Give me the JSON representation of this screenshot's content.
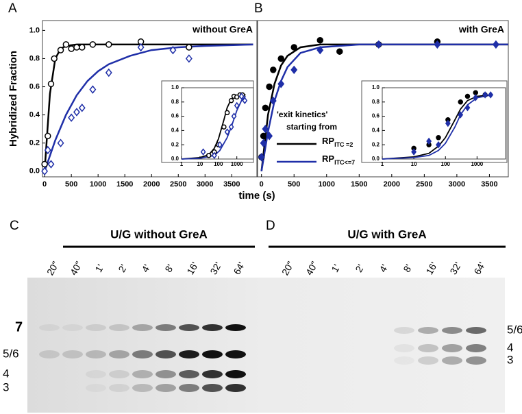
{
  "chart_data": [
    {
      "type": "scatter",
      "panel": "A",
      "title": "without GreA",
      "ylabel": "Hybridized Fraction",
      "xlabel": "time (s)",
      "xlim": [
        -40,
        3970
      ],
      "ylim": [
        -0.04,
        1.07
      ],
      "xticks": [
        0,
        500,
        1000,
        1500,
        2000,
        2500,
        3000,
        3500
      ],
      "yticks": [
        {
          "value": 0,
          "label": "0.0"
        },
        0.2,
        0.4,
        0.6,
        0.8,
        {
          "value": 1,
          "label": "1.0"
        }
      ],
      "series": [
        {
          "kind": "fit",
          "color": "#000000",
          "x": [
            0,
            100,
            200,
            300,
            400,
            600,
            1000,
            2000,
            3900
          ],
          "values": [
            0,
            0.55,
            0.8,
            0.87,
            0.89,
            0.9,
            0.9,
            0.9,
            0.9
          ]
        },
        {
          "kind": "fit",
          "color": "#1f2fa8",
          "x": [
            0,
            200,
            400,
            600,
            800,
            1000,
            1200,
            1600,
            2000,
            2500,
            3000,
            3900
          ],
          "values": [
            0,
            0.22,
            0.4,
            0.54,
            0.64,
            0.71,
            0.76,
            0.82,
            0.86,
            0.88,
            0.89,
            0.9
          ]
        },
        {
          "kind": "points",
          "marker": "circle",
          "filled": false,
          "color": "#000000",
          "x": [
            0,
            60,
            120,
            180,
            300,
            400,
            500,
            600,
            700,
            900,
            1200,
            1800,
            2700
          ],
          "values": [
            0.05,
            0.25,
            0.62,
            0.8,
            0.86,
            0.9,
            0.87,
            0.88,
            0.88,
            0.9,
            0.9,
            0.92,
            0.88
          ]
        },
        {
          "kind": "points",
          "marker": "diamond",
          "filled": false,
          "color": "#1f2fa8",
          "x": [
            0,
            60,
            120,
            300,
            500,
            600,
            700,
            900,
            1200,
            1800,
            2400,
            2700
          ],
          "values": [
            0,
            0.15,
            0.05,
            0.2,
            0.38,
            0.42,
            0.45,
            0.58,
            0.7,
            0.88,
            0.86,
            0.8
          ]
        }
      ]
    },
    {
      "type": "scatter",
      "xscale": "log",
      "xlim": [
        1,
        8000
      ],
      "ylim": [
        0,
        1
      ],
      "xticks": [
        1,
        10,
        100,
        1000
      ],
      "yticks": [
        {
          "value": 0,
          "label": "0.0"
        },
        0.2,
        0.4,
        0.6,
        0.8,
        {
          "value": 1,
          "label": "1.0"
        }
      ],
      "series": [
        {
          "kind": "fit",
          "color": "#000000",
          "x": [
            1,
            10,
            30,
            60,
            100,
            200,
            300,
            500,
            1000,
            3000
          ],
          "values": [
            0,
            0.02,
            0.06,
            0.15,
            0.28,
            0.55,
            0.72,
            0.84,
            0.89,
            0.9
          ]
        },
        {
          "kind": "fit",
          "color": "#1f2fa8",
          "x": [
            1,
            10,
            60,
            120,
            300,
            500,
            700,
            1000,
            1800,
            3000
          ],
          "values": [
            0,
            0.01,
            0.05,
            0.12,
            0.3,
            0.45,
            0.56,
            0.68,
            0.82,
            0.88
          ]
        },
        {
          "kind": "points",
          "marker": "circle",
          "filled": false,
          "color": "#000000",
          "x": [
            30,
            60,
            100,
            200,
            300,
            500,
            700,
            1000,
            1500,
            2000
          ],
          "values": [
            0.05,
            0.1,
            0.2,
            0.45,
            0.65,
            0.82,
            0.88,
            0.87,
            0.9,
            0.9
          ]
        },
        {
          "kind": "points",
          "marker": "diamond",
          "filled": false,
          "color": "#1f2fa8",
          "x": [
            15,
            60,
            120,
            300,
            500,
            700,
            1000,
            1800,
            2700
          ],
          "values": [
            0.1,
            0.05,
            0.2,
            0.38,
            0.45,
            0.6,
            0.75,
            0.88,
            0.82
          ]
        }
      ]
    },
    {
      "type": "scatter",
      "panel": "B",
      "title": "with GreA",
      "xlim": [
        -60,
        3790
      ],
      "ylim": [
        -0.04,
        1.07
      ],
      "xticks": [
        0,
        500,
        1000,
        1500,
        2000,
        2500,
        3000,
        3500
      ],
      "legend": {
        "title": [
          "'exit kinetics'",
          "starting from"
        ],
        "entries": [
          {
            "color": "#000000",
            "main": "RP",
            "sub": "ITC =2"
          },
          {
            "color": "#1f2fa8",
            "main": "RP",
            "sub": "ITC<=7"
          }
        ]
      },
      "series": [
        {
          "kind": "fit",
          "color": "#000000",
          "x": [
            0,
            100,
            200,
            300,
            400,
            600,
            900,
            1500,
            3790
          ],
          "values": [
            0,
            0.4,
            0.62,
            0.75,
            0.82,
            0.88,
            0.9,
            0.9,
            0.9
          ]
        },
        {
          "kind": "fit",
          "color": "#1f2fa8",
          "x": [
            0,
            100,
            200,
            300,
            400,
            600,
            900,
            1500,
            3790
          ],
          "values": [
            0,
            0.28,
            0.5,
            0.64,
            0.74,
            0.84,
            0.88,
            0.9,
            0.9
          ]
        },
        {
          "kind": "points",
          "marker": "circle",
          "filled": true,
          "color": "#000000",
          "x": [
            0,
            30,
            60,
            120,
            180,
            300,
            500,
            900,
            1200,
            1800,
            2700
          ],
          "values": [
            0.1,
            0.25,
            0.45,
            0.6,
            0.72,
            0.8,
            0.88,
            0.93,
            0.85,
            0.9,
            0.92
          ]
        },
        {
          "kind": "points",
          "marker": "diamond",
          "filled": true,
          "color": "#1f2fa8",
          "x": [
            0,
            30,
            60,
            120,
            180,
            300,
            500,
            900,
            1800,
            2700,
            3600
          ],
          "values": [
            0.1,
            0.2,
            0.3,
            0.25,
            0.5,
            0.62,
            0.72,
            0.86,
            0.9,
            0.9,
            0.9
          ]
        }
      ]
    },
    {
      "type": "scatter",
      "xscale": "log",
      "xlim": [
        1,
        8000
      ],
      "ylim": [
        0,
        1
      ],
      "xticks": [
        1,
        10,
        100,
        1000
      ],
      "yticks": [
        {
          "value": 0,
          "label": "0.0"
        },
        0.2,
        0.4,
        0.6,
        0.8,
        {
          "value": 1,
          "label": "1.0"
        }
      ],
      "series": [
        {
          "kind": "fit",
          "color": "#000000",
          "x": [
            1,
            10,
            30,
            60,
            100,
            200,
            300,
            500,
            1000,
            3000
          ],
          "values": [
            0,
            0.03,
            0.08,
            0.18,
            0.3,
            0.55,
            0.7,
            0.82,
            0.88,
            0.9
          ]
        },
        {
          "kind": "fit",
          "color": "#1f2fa8",
          "x": [
            1,
            10,
            30,
            60,
            100,
            200,
            300,
            500,
            1000,
            3000
          ],
          "values": [
            0,
            0.02,
            0.05,
            0.12,
            0.22,
            0.45,
            0.62,
            0.76,
            0.86,
            0.9
          ]
        },
        {
          "kind": "points",
          "marker": "circle",
          "filled": true,
          "color": "#000000",
          "x": [
            10,
            30,
            60,
            120,
            300,
            500,
            900,
            1800
          ],
          "values": [
            0.15,
            0.2,
            0.3,
            0.55,
            0.8,
            0.88,
            0.93,
            0.9
          ]
        },
        {
          "kind": "points",
          "marker": "diamond",
          "filled": true,
          "color": "#1f2fa8",
          "x": [
            10,
            30,
            60,
            120,
            300,
            500,
            900,
            1800,
            2700
          ],
          "values": [
            0.1,
            0.25,
            0.2,
            0.5,
            0.62,
            0.72,
            0.86,
            0.9,
            0.9
          ]
        }
      ]
    }
  ],
  "gels": [
    {
      "panel": "C",
      "header": "U/G without GreA",
      "lanes": [
        "20\"",
        "40\"",
        "1'",
        "2'",
        "4'",
        "8'",
        "16'",
        "32'",
        "64'"
      ],
      "band_labels": [
        "7",
        "5/6",
        "4",
        "3"
      ]
    },
    {
      "panel": "D",
      "header": "U/G with GreA",
      "lanes": [
        "20\"",
        "40\"",
        "1'",
        "2'",
        "4'",
        "8'",
        "16'",
        "32'",
        "64'"
      ],
      "band_labels": [
        "5/6",
        "4",
        "3"
      ]
    }
  ]
}
